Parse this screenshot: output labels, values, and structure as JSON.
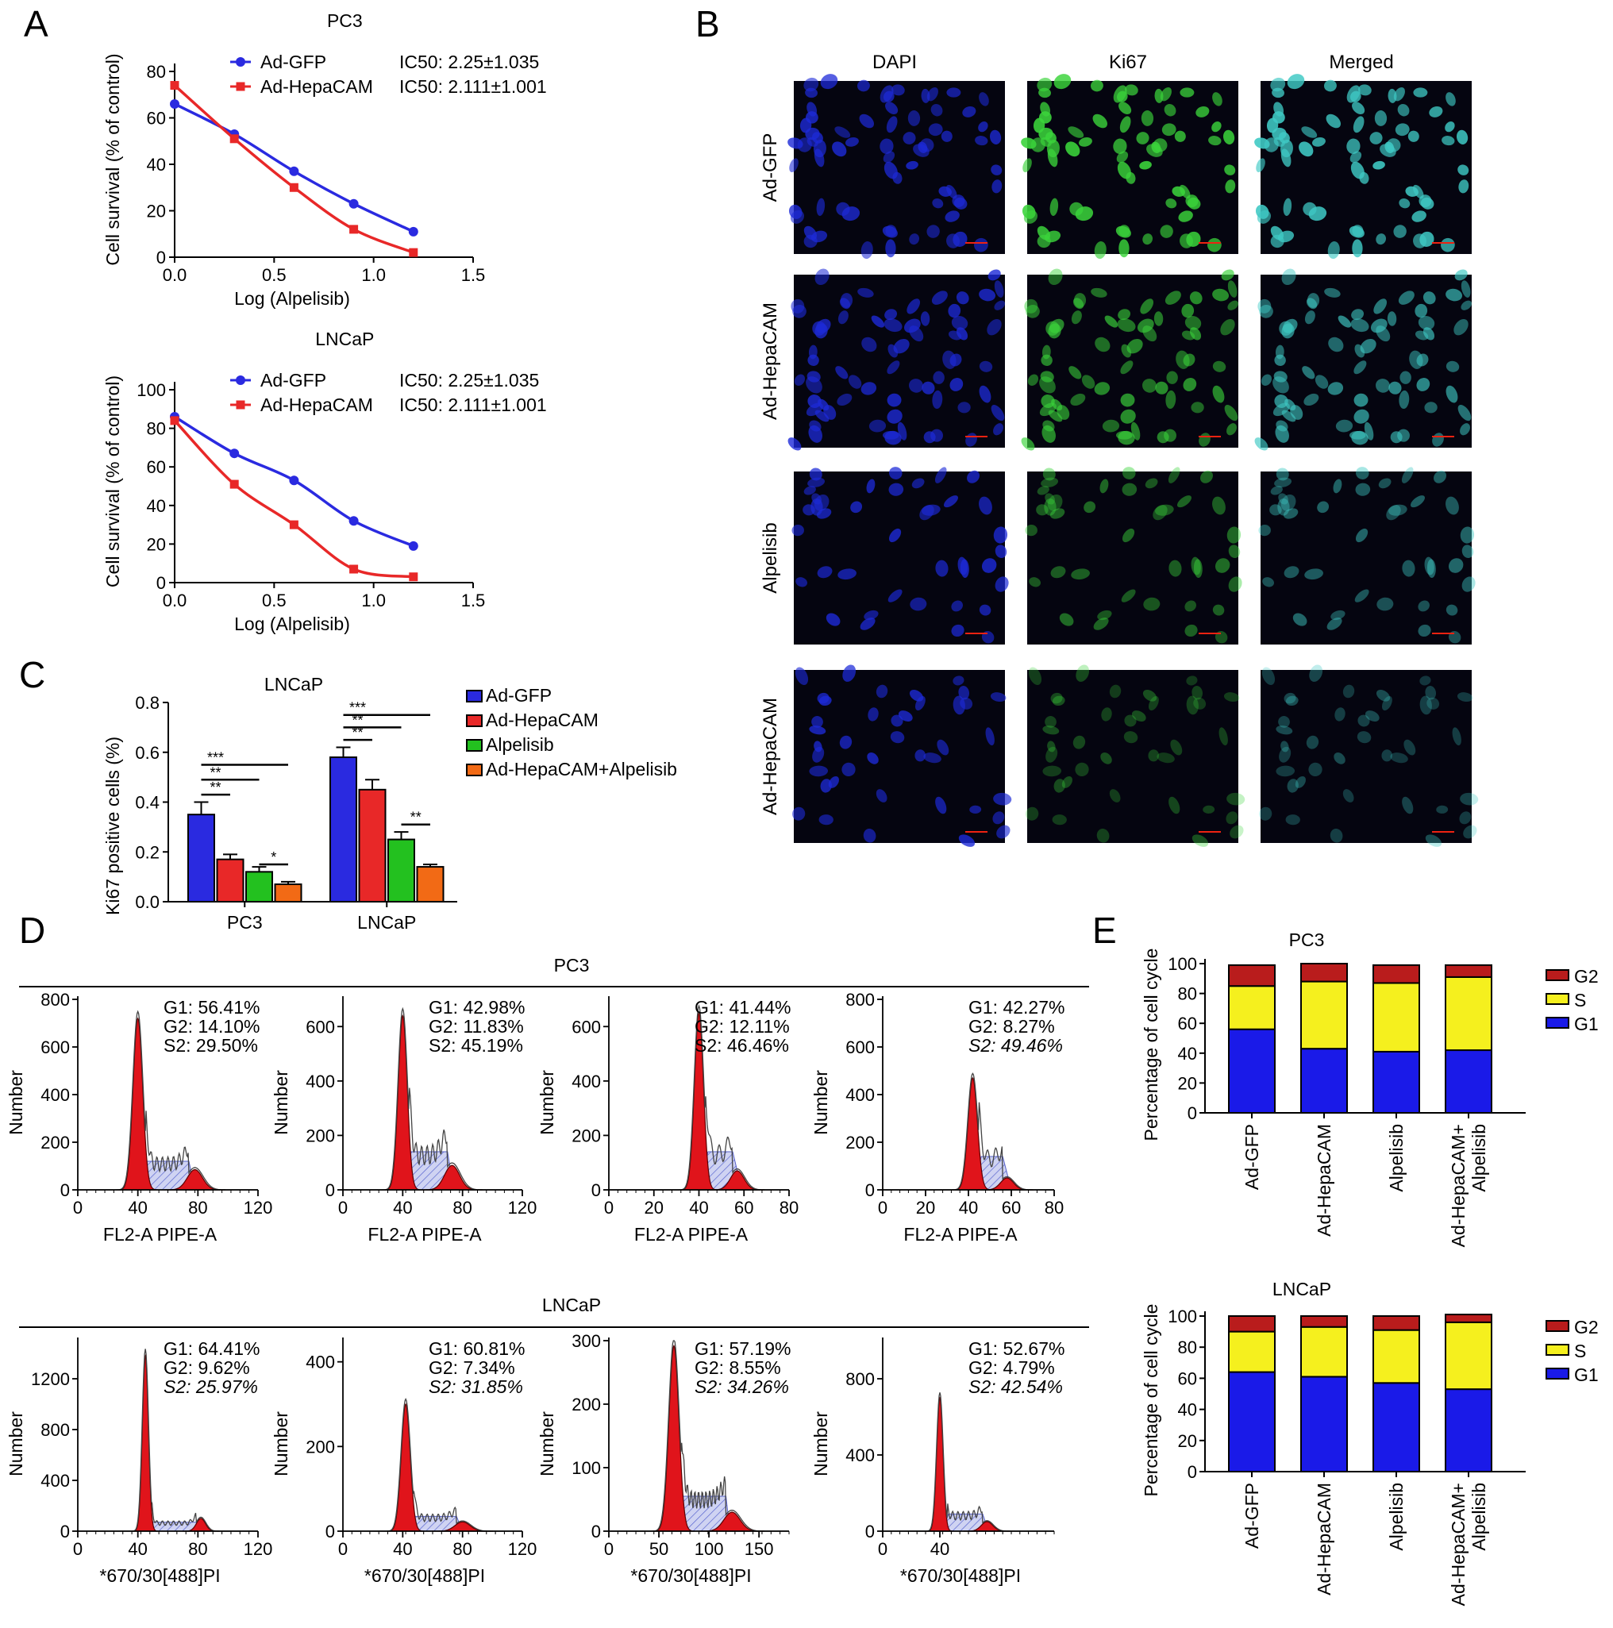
{
  "panels": {
    "A": "A",
    "B": "B",
    "C": "C",
    "D": "D",
    "E": "E"
  },
  "colors": {
    "gfp": "#2a2ae0",
    "hepa": "#e82828",
    "alp": "#23c11f",
    "combo": "#f26a15",
    "g1": "#1a1ae8",
    "s": "#f5f01e",
    "g2": "#b91c1c",
    "peak": "#e0141b",
    "hatch": "#6f79d6",
    "dapi": "#1d2ad8",
    "ki67": "#3bd43b",
    "merged": "#3fc9c4"
  },
  "chart_data": [
    {
      "id": "A1",
      "type": "line",
      "title": "PC3",
      "xlabel": "Log (Alpelisib)",
      "ylabel": "Cell survival (% of control)",
      "xlim": [
        0,
        1.5
      ],
      "ylim": [
        0,
        80
      ],
      "xticks": [
        "0.0",
        "0.5",
        "1.0",
        "1.5"
      ],
      "yticks": [
        "0",
        "20",
        "40",
        "60",
        "80"
      ],
      "x": [
        0.0,
        0.3,
        0.6,
        0.9,
        1.2
      ],
      "series": [
        {
          "name": "Ad-GFP",
          "values": [
            66,
            53,
            37,
            23,
            11
          ],
          "color": "#2a2ae0",
          "marker": "circle"
        },
        {
          "name": "Ad-HepaCAM",
          "values": [
            74,
            51,
            30,
            12,
            2
          ],
          "color": "#e82828",
          "marker": "square"
        }
      ],
      "legend_ic50": [
        "IC50: 2.25±1.035",
        "IC50: 2.111±1.001"
      ]
    },
    {
      "id": "A2",
      "type": "line",
      "title": "LNCaP",
      "xlabel": "Log (Alpelisib)",
      "ylabel": "Cell survival (% of control)",
      "xlim": [
        0,
        1.5
      ],
      "ylim": [
        0,
        100
      ],
      "xticks": [
        "0.0",
        "0.5",
        "1.0",
        "1.5"
      ],
      "yticks": [
        "0",
        "20",
        "40",
        "60",
        "80",
        "100"
      ],
      "x": [
        0.0,
        0.3,
        0.6,
        0.9,
        1.2
      ],
      "series": [
        {
          "name": "Ad-GFP",
          "values": [
            86,
            67,
            53,
            32,
            19
          ],
          "color": "#2a2ae0",
          "marker": "circle"
        },
        {
          "name": "Ad-HepaCAM",
          "values": [
            84,
            51,
            30,
            7,
            3
          ],
          "color": "#e82828",
          "marker": "square"
        }
      ],
      "legend_ic50": [
        "IC50: 2.25±1.035",
        "IC50: 2.111±1.001"
      ]
    },
    {
      "id": "C",
      "type": "bar",
      "title": "LNCaP",
      "ylabel": "Ki67 positive cells (%)",
      "ylim": [
        0,
        0.8
      ],
      "yticks": [
        "0.0",
        "0.2",
        "0.4",
        "0.6",
        "0.8"
      ],
      "categories": [
        "PC3",
        "LNCaP"
      ],
      "series": [
        {
          "name": "Ad-GFP",
          "values": [
            0.35,
            0.58
          ],
          "errors": [
            0.05,
            0.04
          ],
          "color": "#2a2ae0"
        },
        {
          "name": "Ad-HepaCAM",
          "values": [
            0.17,
            0.45
          ],
          "errors": [
            0.02,
            0.04
          ],
          "color": "#e82828"
        },
        {
          "name": "Alpelisib",
          "values": [
            0.12,
            0.25
          ],
          "errors": [
            0.02,
            0.03
          ],
          "color": "#23c11f"
        },
        {
          "name": "Ad-HepaCAM+Alpelisib",
          "values": [
            0.07,
            0.14
          ],
          "errors": [
            0.01,
            0.01
          ],
          "color": "#f26a15"
        }
      ],
      "significance": [
        {
          "group": 0,
          "from": 0,
          "to": 1,
          "label": "**",
          "y": 0.43
        },
        {
          "group": 0,
          "from": 0,
          "to": 2,
          "label": "**",
          "y": 0.49
        },
        {
          "group": 0,
          "from": 0,
          "to": 3,
          "label": "***",
          "y": 0.55
        },
        {
          "group": 0,
          "from": 2,
          "to": 3,
          "label": "*",
          "y": 0.15
        },
        {
          "group": 1,
          "from": 0,
          "to": 1,
          "label": "**",
          "y": 0.65
        },
        {
          "group": 1,
          "from": 0,
          "to": 2,
          "label": "**",
          "y": 0.7
        },
        {
          "group": 1,
          "from": 0,
          "to": 3,
          "label": "***",
          "y": 0.75
        },
        {
          "group": 1,
          "from": 2,
          "to": 3,
          "label": "**",
          "y": 0.31
        }
      ]
    },
    {
      "id": "D",
      "type": "area",
      "titles": [
        "PC3",
        "LNCaP"
      ],
      "ylabel": "Number",
      "rows": [
        {
          "title": "PC3",
          "xlabel": "FL2-A PIPE-A",
          "plots": [
            {
              "xmax": 120,
              "xticks": [
                0,
                40,
                80,
                120
              ],
              "ymax": 800,
              "yticks": [
                0,
                200,
                400,
                600,
                800
              ],
              "stats": [
                "G1: 56.41%",
                "G2: 14.10%",
                "S2: 29.50%"
              ],
              "italicS": false,
              "g1": [
                40,
                720,
                3.2
              ],
              "g2": [
                78,
                85,
                5
              ],
              "s_level": 120,
              "s_range": [
                45,
                74
              ]
            },
            {
              "xmax": 120,
              "xticks": [
                0,
                40,
                80,
                120
              ],
              "ymax": 700,
              "yticks": [
                0,
                200,
                400,
                600
              ],
              "stats": [
                "G1: 42.98%",
                "G2: 11.83%",
                "S2: 45.19%"
              ],
              "italicS": false,
              "g1": [
                40,
                640,
                3
              ],
              "g2": [
                73,
                90,
                5
              ],
              "s_level": 140,
              "s_range": [
                44,
                70
              ]
            },
            {
              "xmax": 80,
              "xticks": [
                0,
                20,
                40,
                60,
                80
              ],
              "ymax": 700,
              "yticks": [
                0,
                200,
                400,
                600
              ],
              "stats": [
                "G1: 41.44%",
                "G2: 12.11%",
                "S2: 46.46%"
              ],
              "italicS": false,
              "g1": [
                40,
                650,
                2
              ],
              "g2": [
                57,
                70,
                3
              ],
              "s_level": 140,
              "s_range": [
                43,
                55
              ]
            },
            {
              "xmax": 80,
              "xticks": [
                0,
                20,
                40,
                60,
                80
              ],
              "ymax": 800,
              "yticks": [
                0,
                200,
                400,
                600,
                800
              ],
              "stats": [
                "G1: 42.27%",
                "G2: 8.27%",
                "S2: 49.46%"
              ],
              "italicS": true,
              "g1": [
                42,
                470,
                2.2
              ],
              "g2": [
                58,
                50,
                3
              ],
              "s_level": 140,
              "s_range": [
                45,
                56
              ]
            }
          ]
        },
        {
          "title": "LNCaP",
          "xlabel": "*670/30[488]PI",
          "plots": [
            {
              "xmax": 120,
              "xticks": [
                0,
                40,
                80,
                120
              ],
              "ymax": 1500,
              "yticks": [
                0,
                400,
                800,
                1200
              ],
              "stats": [
                "G1: 64.41%",
                "G2: 9.62%",
                "S2: 25.97%"
              ],
              "italicS": true,
              "g1": [
                45,
                1380,
                2
              ],
              "g2": [
                82,
                100,
                3
              ],
              "s_level": 70,
              "s_range": [
                49,
                79
              ]
            },
            {
              "xmax": 120,
              "xticks": [
                0,
                40,
                80,
                120
              ],
              "ymax": 450,
              "yticks": [
                0,
                200,
                400
              ],
              "stats": [
                "G1: 60.81%",
                "G2: 7.34%",
                "S2: 31.85%"
              ],
              "italicS": true,
              "g1": [
                42,
                300,
                3
              ],
              "g2": [
                80,
                22,
                5
              ],
              "s_level": 35,
              "s_range": [
                47,
                76
              ]
            },
            {
              "xmax": 180,
              "xticks": [
                0,
                50,
                100,
                150
              ],
              "ymax": 300,
              "yticks": [
                0,
                100,
                200,
                300
              ],
              "stats": [
                "G1: 57.19%",
                "G2: 8.55%",
                "S2: 34.26%"
              ],
              "italicS": true,
              "g1": [
                65,
                292,
                5
              ],
              "g2": [
                123,
                30,
                8
              ],
              "s_level": 55,
              "s_range": [
                72,
                117
              ]
            },
            {
              "xmax": 120,
              "xticks": [
                0,
                40
              ],
              "ymax": 1000,
              "yticks": [
                0,
                400,
                800
              ],
              "stats": [
                "G1: 52.67%",
                "G2: 4.79%",
                "S2: 42.54%"
              ],
              "italicS": true,
              "g1": [
                40,
                700,
                2.2
              ],
              "g2": [
                73,
                50,
                4
              ],
              "s_level": 90,
              "s_range": [
                45,
                70
              ]
            }
          ]
        }
      ]
    },
    {
      "id": "E1",
      "type": "bar",
      "stacked": true,
      "title": "PC3",
      "ylabel": "Percentage of cell cycle",
      "ylim": [
        0,
        100
      ],
      "yticks": [
        "0",
        "20",
        "40",
        "60",
        "80",
        "100"
      ],
      "categories": [
        "Ad-GFP",
        "Ad-HepaCAM",
        "Alpelisib",
        "Ad-HepaCAM+\nAlpelisib"
      ],
      "series": [
        {
          "name": "G1",
          "values": [
            56,
            43,
            41,
            42
          ],
          "color": "#1a1ae8"
        },
        {
          "name": "S",
          "values": [
            29,
            45,
            46,
            49
          ],
          "color": "#f5f01e"
        },
        {
          "name": "G2",
          "values": [
            14,
            12,
            12,
            8
          ],
          "color": "#b91c1c"
        }
      ]
    },
    {
      "id": "E2",
      "type": "bar",
      "stacked": true,
      "title": "LNCaP",
      "ylabel": "Percentage of cell cycle",
      "ylim": [
        0,
        100
      ],
      "yticks": [
        "0",
        "20",
        "40",
        "60",
        "80",
        "100"
      ],
      "categories": [
        "Ad-GFP",
        "Ad-HepaCAM",
        "Alpelisib",
        "Ad-HepaCAM+\nAlpelisib"
      ],
      "series": [
        {
          "name": "G1",
          "values": [
            64,
            61,
            57,
            53
          ],
          "color": "#1a1ae8"
        },
        {
          "name": "S",
          "values": [
            26,
            32,
            34,
            43
          ],
          "color": "#f5f01e"
        },
        {
          "name": "G2",
          "values": [
            10,
            7,
            9,
            5
          ],
          "color": "#b91c1c"
        }
      ]
    }
  ],
  "microscopy": {
    "columns": [
      "DAPI",
      "Ki67",
      "Merged"
    ],
    "rows": [
      "Ad-GFP",
      "Ad-HepaCAM",
      "Alpelisib",
      "Ad-HepaCAM"
    ],
    "intensity": [
      1.0,
      0.75,
      0.55,
      0.4
    ]
  }
}
